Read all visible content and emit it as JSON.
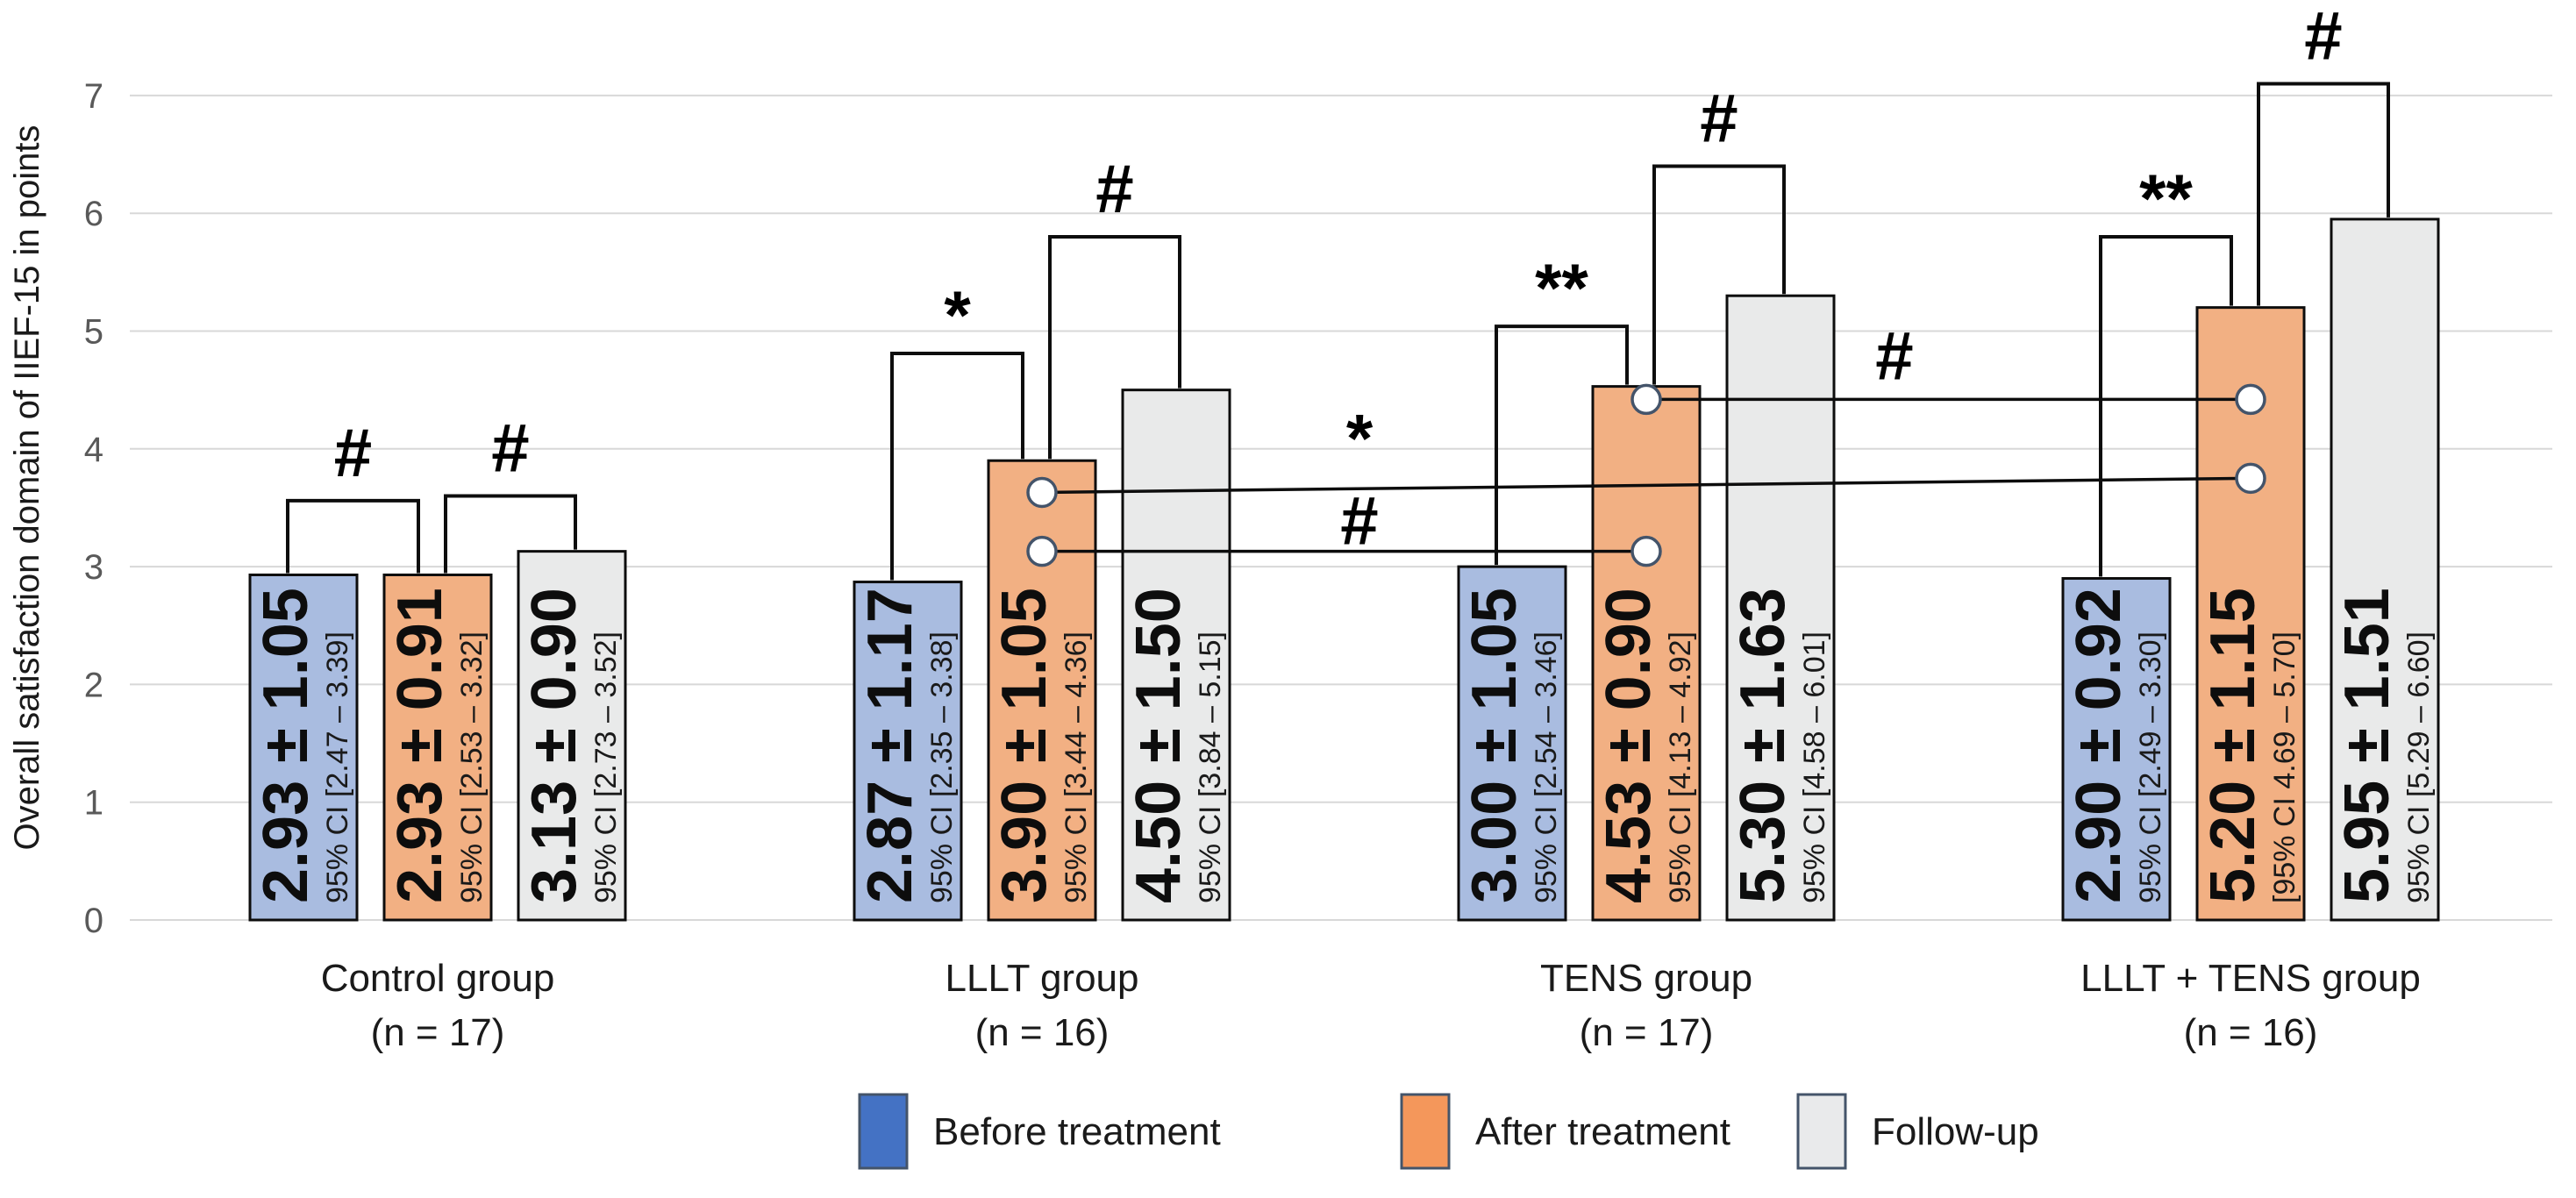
{
  "chart_data": {
    "type": "bar",
    "title": "",
    "ylabel": "Overall satisfaction domain of IIEF-15 in points",
    "xlabel": "",
    "ylim": [
      0,
      7
    ],
    "yticks": [
      0,
      1,
      2,
      3,
      4,
      5,
      6,
      7
    ],
    "grid": true,
    "legend_position": "bottom",
    "series": [
      "Before treatment",
      "After treatment",
      "Follow-up"
    ],
    "groups": [
      {
        "label": "Control group",
        "n_label": "(n = 17)",
        "bars": [
          {
            "series": "Before treatment",
            "value": 2.93,
            "sd": 1.05,
            "value_label": "2.93 ± 1.05",
            "ci_label": "95% CI [2.47 – 3.39]"
          },
          {
            "series": "After treatment",
            "value": 2.93,
            "sd": 0.91,
            "value_label": "2.93 ± 0.91",
            "ci_label": "95% CI [2.53 – 3.32]"
          },
          {
            "series": "Follow-up",
            "value": 3.13,
            "sd": 0.9,
            "value_label": "3.13 ± 0.90",
            "ci_label": "95% CI [2.73 – 3.52]"
          }
        ]
      },
      {
        "label": "LLLT group",
        "n_label": "(n = 16)",
        "bars": [
          {
            "series": "Before treatment",
            "value": 2.87,
            "sd": 1.17,
            "value_label": "2.87 ± 1.17",
            "ci_label": "95% CI [2.35 – 3.38]"
          },
          {
            "series": "After treatment",
            "value": 3.9,
            "sd": 1.05,
            "value_label": "3.90 ± 1.05",
            "ci_label": "95% CI [3.44 – 4.36]"
          },
          {
            "series": "Follow-up",
            "value": 4.5,
            "sd": 1.5,
            "value_label": "4.50 ± 1.50",
            "ci_label": "95% CI [3.84 – 5.15]"
          }
        ]
      },
      {
        "label": "TENS group",
        "n_label": "(n = 17)",
        "bars": [
          {
            "series": "Before treatment",
            "value": 3.0,
            "sd": 1.05,
            "value_label": "3.00 ± 1.05",
            "ci_label": "95% CI [2.54 – 3.46]"
          },
          {
            "series": "After treatment",
            "value": 4.53,
            "sd": 0.9,
            "value_label": "4.53 ± 0.90",
            "ci_label": "95% CI [4.13 – 4.92]"
          },
          {
            "series": "Follow-up",
            "value": 5.3,
            "sd": 1.63,
            "value_label": "5.30 ± 1.63",
            "ci_label": "95% CI [4.58 – 6.01]"
          }
        ]
      },
      {
        "label": "LLLT + TENS group",
        "n_label": "(n = 16)",
        "bars": [
          {
            "series": "Before treatment",
            "value": 2.9,
            "sd": 0.92,
            "value_label": "2.90 ± 0.92",
            "ci_label": "95% CI [2.49 – 3.30]"
          },
          {
            "series": "After treatment",
            "value": 5.2,
            "sd": 1.15,
            "value_label": "5.20 ± 1.15",
            "ci_label": "[95% CI 4.69 – 5.70]"
          },
          {
            "series": "Follow-up",
            "value": 5.95,
            "sd": 1.51,
            "value_label": "5.95 ± 1.51",
            "ci_label": "95% CI [5.29 – 6.60]"
          }
        ]
      }
    ],
    "significance": {
      "within_group_brackets": [
        {
          "group": 0,
          "bars": [
            0,
            1
          ],
          "height": 3.56,
          "symbol": "#"
        },
        {
          "group": 0,
          "bars": [
            1,
            2
          ],
          "height": 3.6,
          "symbol": "#"
        },
        {
          "group": 1,
          "bars": [
            0,
            1
          ],
          "height": 4.81,
          "symbol": "*"
        },
        {
          "group": 1,
          "bars": [
            1,
            2
          ],
          "height": 5.8,
          "symbol": "#"
        },
        {
          "group": 2,
          "bars": [
            0,
            1
          ],
          "height": 5.04,
          "symbol": "**"
        },
        {
          "group": 2,
          "bars": [
            1,
            2
          ],
          "height": 6.4,
          "symbol": "#"
        },
        {
          "group": 3,
          "bars": [
            0,
            1
          ],
          "height": 5.8,
          "symbol": "**"
        },
        {
          "group": 3,
          "bars": [
            1,
            2
          ],
          "height": 7.1,
          "symbol": "#"
        }
      ],
      "between_group_connectors": [
        {
          "from_group": 1,
          "from_value": 3.63,
          "to_group": 3,
          "to_value": 3.75,
          "symbol": "*",
          "symbol_x": 1550,
          "symbol_value": 4.18
        },
        {
          "from_group": 1,
          "from_value": 3.13,
          "to_group": 2,
          "to_value": 3.13,
          "symbol": "#",
          "symbol_x": 1550,
          "symbol_value": 3.4
        },
        {
          "from_group": 2,
          "from_value": 4.42,
          "to_group": 3,
          "to_value": 4.42,
          "symbol": "#",
          "symbol_x": 2160,
          "symbol_value": 4.8
        }
      ]
    },
    "colors": {
      "bar_fills": [
        "#A9BCE0",
        "#F2B083",
        "#E9EAEA"
      ],
      "bar_stroke": "#0d0d0d",
      "gridline": "#D8D8D8",
      "tick_label": "#595959",
      "annotation": "#000000",
      "connector_dot_stroke": "#44546A"
    }
  },
  "legend": {
    "swatch_stroke": "#44546A",
    "items": [
      {
        "label": "Before treatment",
        "color": "#4472C4"
      },
      {
        "label": "After treatment",
        "color": "#F4975B"
      },
      {
        "label": "Follow-up",
        "color": "#E9EAEB"
      }
    ]
  }
}
